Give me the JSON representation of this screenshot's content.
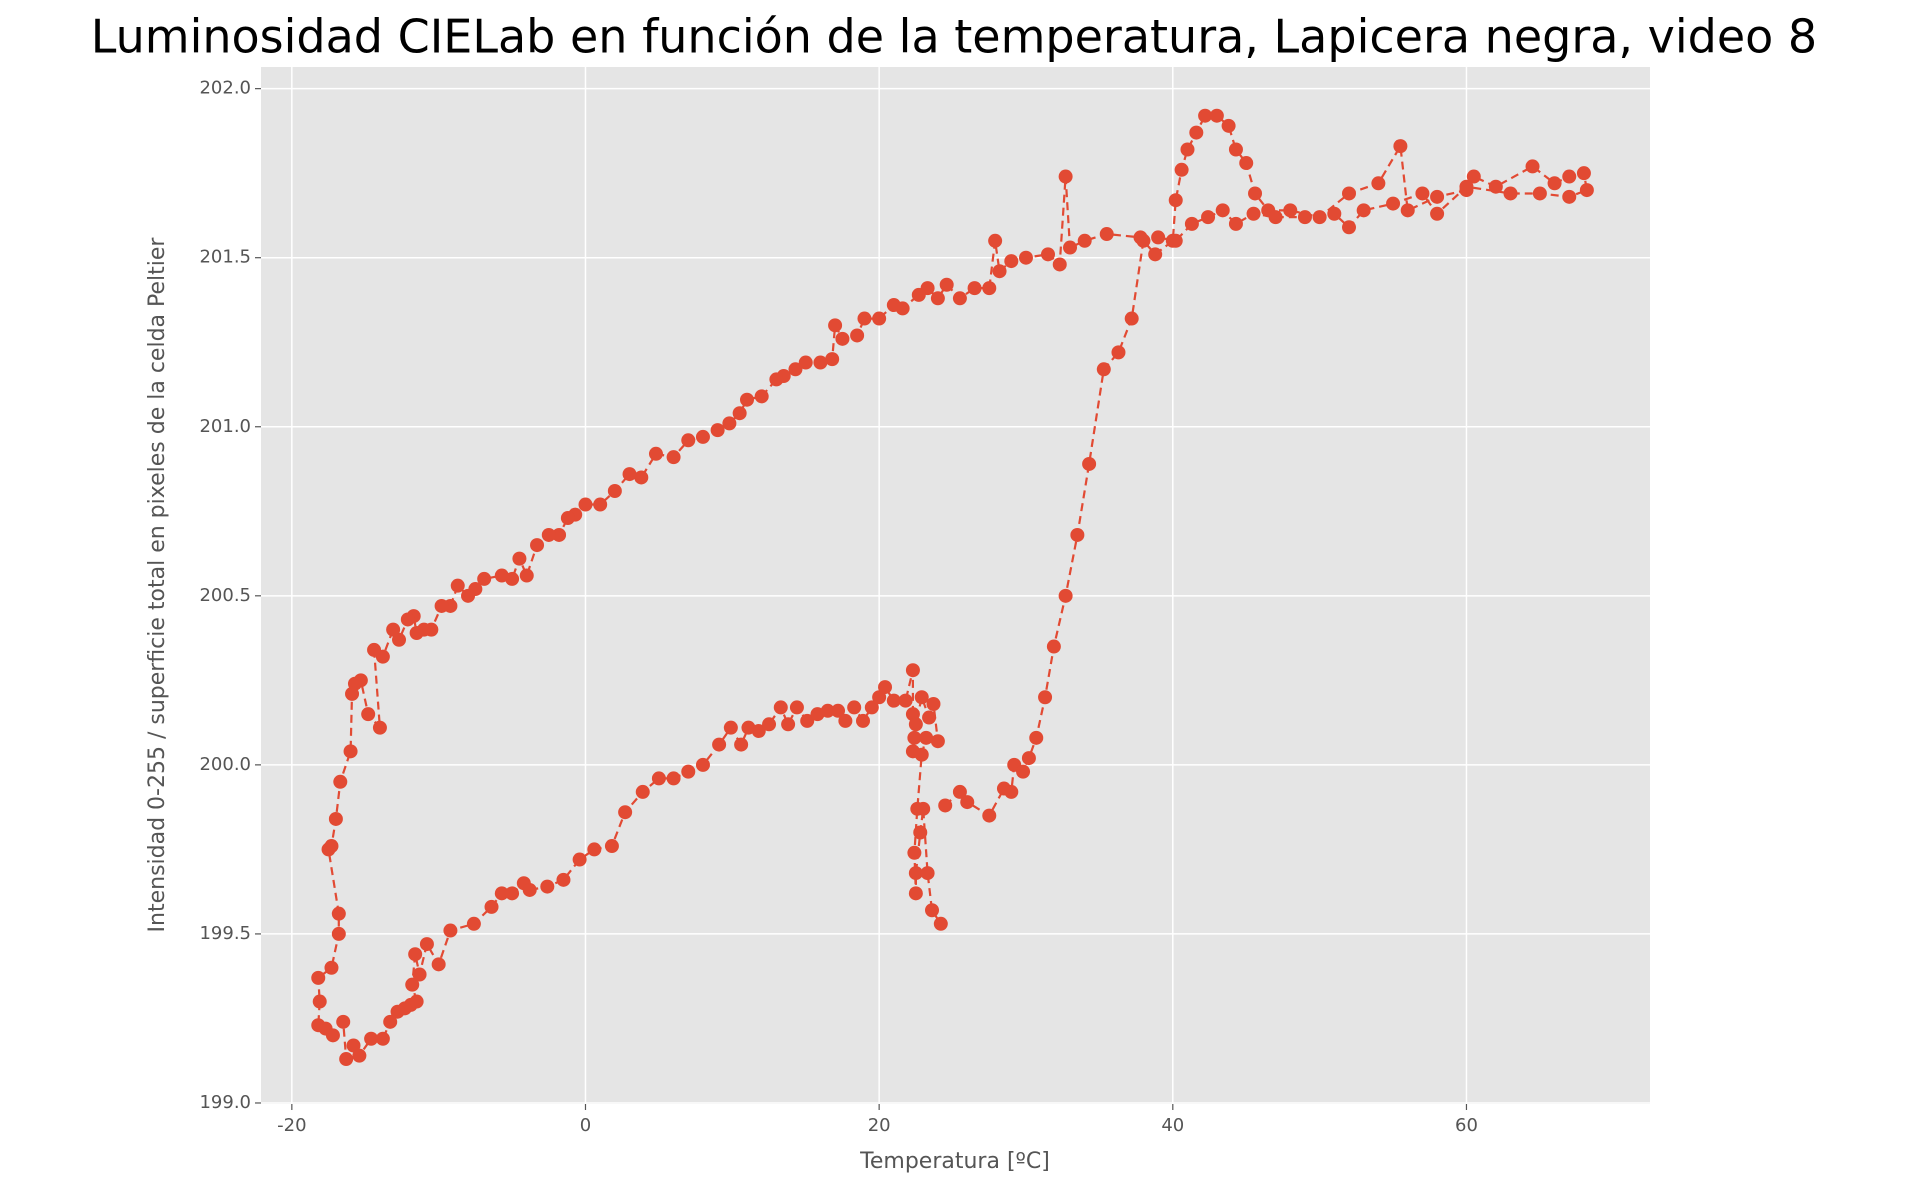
{
  "chart_data": {
    "type": "line",
    "title": "Luminosidad CIELab en función de la temperatura, Lapicera negra, video 8",
    "x_label": "Temperatura [ºC]",
    "y_label": "Intensidad 0-255 / superficie total en pixeles de la celda Peltier",
    "color": "#E24A33",
    "line_style": "dashed",
    "grid": true,
    "xlim": [
      -22.1,
      72.5
    ],
    "ylim": [
      198.997,
      202.064
    ],
    "xticks": [
      -20,
      0,
      20,
      40,
      60
    ],
    "yticks": [
      {
        "value": 199,
        "label": "199.0"
      },
      199.5,
      {
        "value": 200,
        "label": "200.0"
      },
      200.5,
      {
        "value": 201,
        "label": "201.0"
      },
      201.5,
      {
        "value": 202,
        "label": "202.0"
      }
    ],
    "x": [
      24.5,
      25.5,
      26,
      27.5,
      28.5,
      29,
      29.2,
      29.8,
      30.2,
      30.7,
      31.3,
      31.9,
      32.7,
      33.5,
      34.3,
      35.3,
      36.3,
      37.2,
      38,
      38.8,
      40,
      40.2,
      40.6,
      41,
      41.6,
      42.2,
      43,
      43.8,
      44.3,
      45,
      45.6,
      46.5,
      48,
      50,
      52,
      54,
      55.5,
      56,
      58,
      60,
      60.5,
      62,
      64.5,
      66,
      67,
      68,
      68.2,
      67,
      65,
      63,
      60,
      58,
      57,
      55,
      53,
      52,
      51,
      49,
      47,
      45.5,
      44.3,
      43.4,
      42.4,
      41.3,
      40.2,
      39,
      37.8,
      35.5,
      34,
      33,
      32.7,
      32.3,
      31.5,
      30,
      29,
      28.2,
      27.9,
      27.5,
      26.5,
      25.5,
      24.6,
      24,
      23.3,
      22.7,
      21.6,
      21,
      20,
      19,
      18.5,
      17.5,
      17,
      16.8,
      16,
      15,
      14.3,
      13.5,
      13,
      12,
      11,
      10.5,
      9.8,
      9,
      8,
      7,
      6,
      4.8,
      3.8,
      3,
      2,
      1,
      0,
      -0.7,
      -1.2,
      -1.8,
      -2.5,
      -3.3,
      -4,
      -4.5,
      -5,
      -5.7,
      -6.9,
      -7.5,
      -8,
      -8.7,
      -9.2,
      -9.8,
      -10.5,
      -11,
      -11.5,
      -11.7,
      -12.1,
      -12.7,
      -13.1,
      -13.8,
      -14.4,
      -14,
      -14.8,
      -15.3,
      -15.7,
      -15.9,
      -16,
      -16.7,
      -17,
      -17.3,
      -17.5,
      -16.8,
      -16.8,
      -17.3,
      -18.2,
      -18.1,
      -18.2,
      -17.7,
      -17.2,
      -16.5,
      -16.3,
      -15.8,
      -15.4,
      -14.6,
      -13.8,
      -13.3,
      -12.8,
      -12.3,
      -11.9,
      -11.5,
      -11.8,
      -11.6,
      -11.3,
      -10.8,
      -10,
      -9.2,
      -7.6,
      -6.4,
      -5.7,
      -5,
      -4.2,
      -3.8,
      -2.6,
      -1.5,
      -0.4,
      0.6,
      1.8,
      2.7,
      3.9,
      5,
      6,
      7,
      8,
      9.1,
      9.9,
      10.6,
      11.1,
      11.8,
      12.5,
      13.3,
      13.8,
      14.4,
      15.1,
      15.8,
      16.5,
      17.2,
      17.7,
      18.3,
      18.9,
      19.5,
      20,
      20.4,
      21,
      21.8,
      22.3,
      22.3,
      22.4,
      22.3,
      22.5,
      22.9,
      23.4,
      23.7,
      24,
      23.2,
      22.9,
      22.6,
      22.4,
      22.5,
      22.5,
      22.8,
      23,
      23.3,
      23.6,
      24.2
    ],
    "values": [
      199.88,
      199.92,
      199.89,
      199.85,
      199.93,
      199.92,
      200,
      199.98,
      200.02,
      200.08,
      200.2,
      200.35,
      200.5,
      200.68,
      200.89,
      201.17,
      201.22,
      201.32,
      201.55,
      201.51,
      201.55,
      201.67,
      201.76,
      201.82,
      201.87,
      201.92,
      201.92,
      201.89,
      201.82,
      201.78,
      201.69,
      201.64,
      201.64,
      201.62,
      201.69,
      201.72,
      201.83,
      201.64,
      201.68,
      201.7,
      201.74,
      201.71,
      201.77,
      201.72,
      201.74,
      201.75,
      201.7,
      201.68,
      201.69,
      201.69,
      201.71,
      201.63,
      201.69,
      201.66,
      201.64,
      201.59,
      201.63,
      201.62,
      201.62,
      201.63,
      201.6,
      201.64,
      201.62,
      201.6,
      201.55,
      201.56,
      201.56,
      201.57,
      201.55,
      201.53,
      201.74,
      201.48,
      201.51,
      201.5,
      201.49,
      201.46,
      201.55,
      201.41,
      201.41,
      201.38,
      201.42,
      201.38,
      201.41,
      201.39,
      201.35,
      201.36,
      201.32,
      201.32,
      201.27,
      201.26,
      201.3,
      201.2,
      201.19,
      201.19,
      201.17,
      201.15,
      201.14,
      201.09,
      201.08,
      201.04,
      201.01,
      200.99,
      200.97,
      200.96,
      200.91,
      200.92,
      200.85,
      200.86,
      200.81,
      200.77,
      200.77,
      200.74,
      200.73,
      200.68,
      200.68,
      200.65,
      200.56,
      200.61,
      200.55,
      200.56,
      200.55,
      200.52,
      200.5,
      200.53,
      200.47,
      200.47,
      200.4,
      200.4,
      200.39,
      200.44,
      200.43,
      200.37,
      200.4,
      200.32,
      200.34,
      200.11,
      200.15,
      200.25,
      200.24,
      200.21,
      200.04,
      199.95,
      199.84,
      199.76,
      199.75,
      199.56,
      199.5,
      199.4,
      199.37,
      199.3,
      199.23,
      199.22,
      199.2,
      199.24,
      199.13,
      199.17,
      199.14,
      199.19,
      199.19,
      199.24,
      199.27,
      199.28,
      199.29,
      199.3,
      199.35,
      199.44,
      199.38,
      199.47,
      199.41,
      199.51,
      199.53,
      199.58,
      199.62,
      199.62,
      199.65,
      199.63,
      199.64,
      199.66,
      199.72,
      199.75,
      199.76,
      199.86,
      199.92,
      199.96,
      199.96,
      199.98,
      200,
      200.06,
      200.11,
      200.06,
      200.11,
      200.1,
      200.12,
      200.17,
      200.12,
      200.17,
      200.13,
      200.15,
      200.16,
      200.16,
      200.13,
      200.17,
      200.13,
      200.17,
      200.2,
      200.23,
      200.19,
      200.19,
      200.28,
      200.15,
      200.08,
      200.04,
      200.12,
      200.2,
      200.14,
      200.18,
      200.07,
      200.08,
      200.03,
      199.87,
      199.74,
      199.62,
      199.68,
      199.8,
      199.87,
      199.68,
      199.57,
      199.53
    ]
  }
}
